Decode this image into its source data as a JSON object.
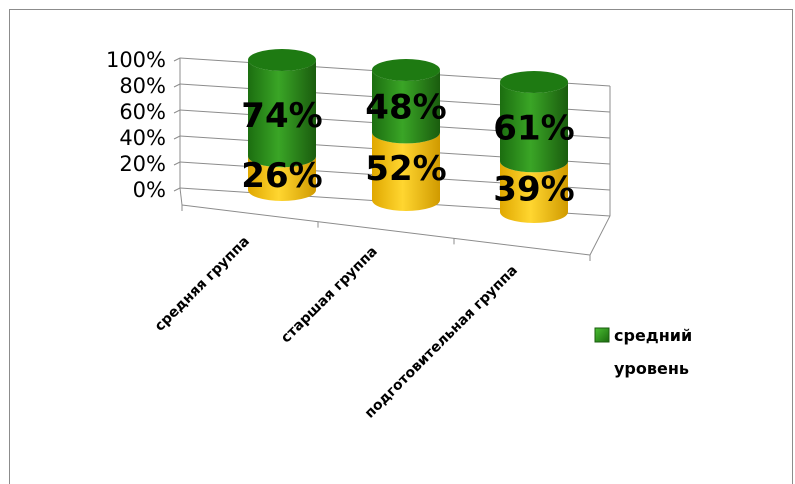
{
  "chart_data": {
    "type": "bar",
    "style": "3d-cylinder-stacked-100",
    "categories": [
      "средняя группа",
      "старшая группа",
      "подготовительная группа"
    ],
    "series": [
      {
        "values": [
          26,
          52,
          39
        ],
        "color": "#f2c200"
      },
      {
        "name": "средний уровень",
        "values": [
          74,
          48,
          61
        ],
        "color": "#2a8a19"
      }
    ],
    "data_labels": [
      [
        "26%",
        "52%",
        "39%"
      ],
      [
        "74%",
        "48%",
        "61%"
      ]
    ],
    "y_ticks": [
      "0%",
      "20%",
      "40%",
      "60%",
      "80%",
      "100%"
    ],
    "ylim": [
      0,
      100
    ],
    "grid": true,
    "legend": {
      "position": "right",
      "lines": [
        "средний",
        "уровень"
      ]
    }
  }
}
